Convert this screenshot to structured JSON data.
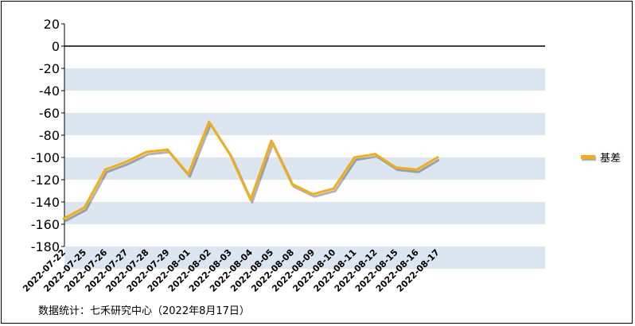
{
  "chart_data": {
    "type": "line",
    "title": "",
    "xlabel": "",
    "ylabel": "",
    "ylim": [
      -180,
      20
    ],
    "yticks": [
      "20",
      "0",
      "-20",
      "-40",
      "-60",
      "-80",
      "-100",
      "-120",
      "-140",
      "-160",
      "-180"
    ],
    "grid": "alternating horizontal bands",
    "legend_position": "right",
    "categories": [
      "2022-07-22",
      "2022-07-25",
      "2022-07-26",
      "2022-07-27",
      "2022-07-28",
      "2022-07-29",
      "2022-08-01",
      "2022-08-02",
      "2022-08-03",
      "2022-08-04",
      "2022-08-05",
      "2022-08-08",
      "2022-08-09",
      "2022-08-10",
      "2022-08-11",
      "2022-08-12",
      "2022-08-15",
      "2022-08-16",
      "2022-08-17"
    ],
    "series": [
      {
        "name": "基差",
        "color": "#f0ae1c",
        "values": [
          -155,
          -145,
          -111,
          -104,
          -95,
          -93,
          -115,
          -68,
          -97,
          -138,
          -85,
          -124,
          -133,
          -128,
          -100,
          -97,
          -109,
          -111,
          -100
        ]
      }
    ]
  },
  "footer": {
    "source": "数据统计：七禾研究中心（2022年8月17日）"
  },
  "colors": {
    "band": "#dce6f1",
    "line": "#f0ae1c",
    "axis": "#000000"
  }
}
